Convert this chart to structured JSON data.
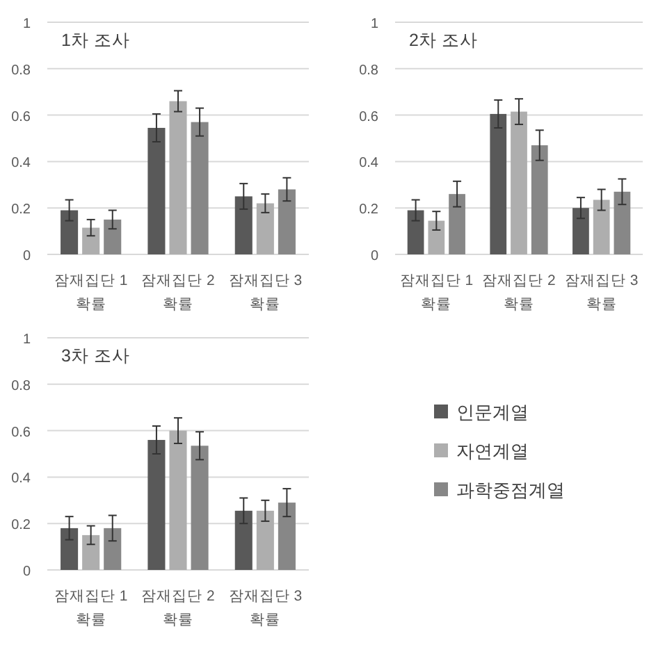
{
  "chart_data": [
    {
      "type": "bar",
      "title": "1차 조사",
      "categories": [
        "잠재집단 1 확률",
        "잠재집단 2 확률",
        "잠재집단 3 확률"
      ],
      "ylim": [
        0,
        1
      ],
      "yticks": [
        0,
        0.2,
        0.4,
        0.6,
        0.8,
        1
      ],
      "grid": "y",
      "legend": false,
      "series": [
        {
          "color": "#595959",
          "values": [
            0.19,
            0.545,
            0.25
          ],
          "errors": [
            0.045,
            0.06,
            0.055
          ]
        },
        {
          "color": "#aeaeae",
          "values": [
            0.115,
            0.66,
            0.22
          ],
          "errors": [
            0.035,
            0.045,
            0.04
          ]
        },
        {
          "color": "#878787",
          "values": [
            0.15,
            0.57,
            0.28
          ],
          "errors": [
            0.04,
            0.06,
            0.05
          ]
        }
      ]
    },
    {
      "type": "bar",
      "title": "2차 조사",
      "categories": [
        "잠재집단 1 확률",
        "잠재집단 2 확률",
        "잠재집단 3 확률"
      ],
      "ylim": [
        0,
        1
      ],
      "yticks": [
        0,
        0.2,
        0.4,
        0.6,
        0.8,
        1
      ],
      "grid": "y",
      "legend": false,
      "series": [
        {
          "color": "#595959",
          "values": [
            0.19,
            0.605,
            0.2
          ],
          "errors": [
            0.045,
            0.06,
            0.045
          ]
        },
        {
          "color": "#aeaeae",
          "values": [
            0.145,
            0.615,
            0.235
          ],
          "errors": [
            0.04,
            0.055,
            0.045
          ]
        },
        {
          "color": "#878787",
          "values": [
            0.26,
            0.47,
            0.27
          ],
          "errors": [
            0.055,
            0.065,
            0.055
          ]
        }
      ]
    },
    {
      "type": "bar",
      "title": "3차 조사",
      "categories": [
        "잠재집단 1 확률",
        "잠재집단 2 확률",
        "잠재집단 3 확률"
      ],
      "ylim": [
        0,
        1
      ],
      "yticks": [
        0,
        0.2,
        0.4,
        0.6,
        0.8,
        1
      ],
      "grid": "y",
      "legend": "right",
      "series": [
        {
          "name": "인문계열",
          "color": "#595959",
          "values": [
            0.18,
            0.56,
            0.255
          ],
          "errors": [
            0.05,
            0.06,
            0.055
          ]
        },
        {
          "name": "자연계열",
          "color": "#aeaeae",
          "values": [
            0.15,
            0.6,
            0.255
          ],
          "errors": [
            0.04,
            0.055,
            0.045
          ]
        },
        {
          "name": "과학중점계열",
          "color": "#878787",
          "values": [
            0.18,
            0.535,
            0.29
          ],
          "errors": [
            0.055,
            0.06,
            0.06
          ]
        }
      ]
    }
  ]
}
